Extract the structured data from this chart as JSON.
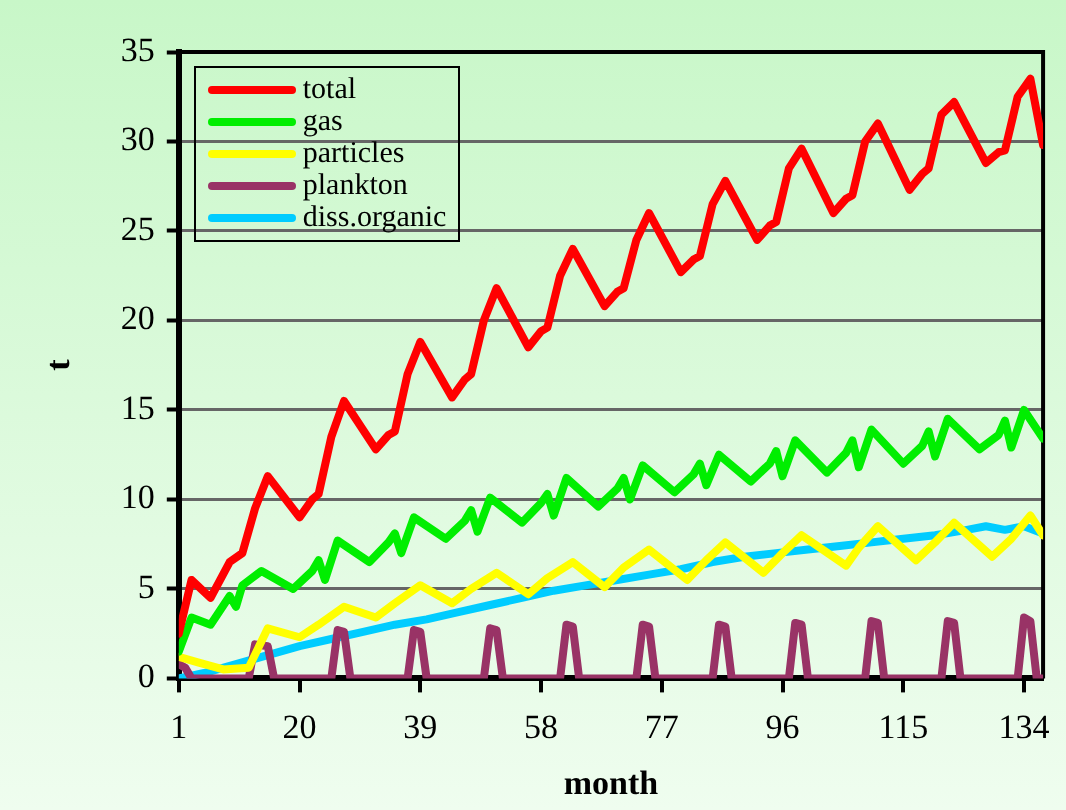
{
  "chart_data": {
    "type": "line",
    "xlabel": "month",
    "ylabel": "t",
    "xlim": [
      1,
      137
    ],
    "xticks": [
      1,
      20,
      39,
      58,
      77,
      96,
      115,
      134
    ],
    "ylim": [
      0,
      35
    ],
    "yticks": [
      0,
      5,
      10,
      15,
      20,
      25,
      30,
      35
    ],
    "grid": "y",
    "legend": "top left",
    "marker": "none",
    "line_style": "solid",
    "series": [
      {
        "name": "total",
        "color": "#ff0000",
        "x": [
          1,
          3,
          6,
          9,
          11,
          13,
          15,
          20,
          22,
          23,
          25,
          27,
          32,
          34,
          35,
          37,
          39,
          44,
          46,
          47,
          49,
          51,
          56,
          58,
          59,
          61,
          63,
          68,
          70,
          71,
          73,
          75,
          80,
          82,
          83,
          85,
          87,
          92,
          94,
          95,
          97,
          99,
          104,
          106,
          107,
          109,
          111,
          116,
          118,
          119,
          121,
          123,
          128,
          130,
          131,
          133,
          135,
          137
        ],
        "values": [
          2.5,
          5.5,
          4.5,
          6.5,
          7.0,
          9.5,
          11.3,
          9.0,
          10.0,
          10.3,
          13.5,
          15.5,
          12.8,
          13.6,
          13.8,
          17.0,
          18.8,
          15.7,
          16.7,
          17.0,
          20.0,
          21.8,
          18.5,
          19.4,
          19.6,
          22.5,
          24.0,
          20.8,
          21.6,
          21.8,
          24.5,
          26.0,
          22.7,
          23.4,
          23.6,
          26.5,
          27.8,
          24.5,
          25.3,
          25.5,
          28.5,
          29.6,
          26.0,
          26.8,
          27.0,
          30.0,
          31.0,
          27.3,
          28.2,
          28.5,
          31.5,
          32.2,
          28.8,
          29.4,
          29.5,
          32.5,
          33.5,
          29.8
        ]
      },
      {
        "name": "gas",
        "color": "#00ee00",
        "x": [
          1,
          3,
          6,
          9,
          10,
          11,
          14,
          19,
          22,
          23,
          24,
          26,
          31,
          34,
          35,
          36,
          38,
          43,
          46,
          47,
          48,
          50,
          55,
          58,
          59,
          60,
          62,
          67,
          70,
          71,
          72,
          74,
          79,
          82,
          83,
          84,
          86,
          91,
          94,
          95,
          96,
          98,
          103,
          106,
          107,
          108,
          110,
          115,
          118,
          119,
          120,
          122,
          127,
          130,
          131,
          132,
          134,
          137
        ],
        "values": [
          1.5,
          3.4,
          3.0,
          4.6,
          4.0,
          5.2,
          6.0,
          5.0,
          6.0,
          6.6,
          5.5,
          7.7,
          6.5,
          7.6,
          8.1,
          7.0,
          9.0,
          7.8,
          8.8,
          9.4,
          8.2,
          10.1,
          8.7,
          9.8,
          10.3,
          9.1,
          11.2,
          9.6,
          10.6,
          11.2,
          10.0,
          11.9,
          10.4,
          11.4,
          12.0,
          10.8,
          12.5,
          11.0,
          12.0,
          12.7,
          11.3,
          13.3,
          11.5,
          12.6,
          13.3,
          11.8,
          13.9,
          12.0,
          13.0,
          13.8,
          12.4,
          14.5,
          12.8,
          13.6,
          14.4,
          12.9,
          15.0,
          13.4
        ]
      },
      {
        "name": "particles",
        "color": "#ffff00",
        "x": [
          1,
          4,
          8,
          12,
          15,
          20,
          23,
          27,
          32,
          35,
          39,
          44,
          47,
          51,
          56,
          59,
          63,
          68,
          71,
          75,
          81,
          84,
          87,
          93,
          96,
          99,
          106,
          108,
          111,
          117,
          120,
          123,
          129,
          132,
          135,
          137
        ],
        "values": [
          1.2,
          0.9,
          0.5,
          0.6,
          2.8,
          2.3,
          3.0,
          4.0,
          3.4,
          4.2,
          5.2,
          4.2,
          5.0,
          5.9,
          4.7,
          5.6,
          6.5,
          5.1,
          6.2,
          7.2,
          5.5,
          6.6,
          7.6,
          5.9,
          7.0,
          8.0,
          6.3,
          7.3,
          8.5,
          6.6,
          7.6,
          8.7,
          6.8,
          7.8,
          9.1,
          8.0
        ]
      },
      {
        "name": "plankton",
        "color": "#993366",
        "x": [
          1,
          2,
          3,
          12,
          13,
          15,
          16,
          25,
          26,
          27,
          28,
          37,
          38,
          39,
          40,
          49,
          50,
          51,
          52,
          61,
          62,
          63,
          64,
          73,
          74,
          75,
          76,
          85,
          86,
          87,
          88,
          97,
          98,
          99,
          100,
          109,
          110,
          111,
          112,
          121,
          122,
          123,
          124,
          133,
          134,
          135,
          136,
          137
        ],
        "values": [
          0.8,
          0.6,
          0,
          0,
          1.9,
          1.8,
          0,
          0,
          2.7,
          2.6,
          0,
          0,
          2.7,
          2.6,
          0,
          0,
          2.8,
          2.7,
          0,
          0,
          3.0,
          2.9,
          0,
          0,
          3.0,
          2.9,
          0,
          0,
          3.0,
          2.9,
          0,
          0,
          3.1,
          3.0,
          0,
          0,
          3.2,
          3.1,
          0,
          0,
          3.2,
          3.1,
          0,
          0,
          3.4,
          3.2,
          0,
          0
        ]
      },
      {
        "name": "diss.organic",
        "color": "#00ccff",
        "x": [
          1,
          5,
          10,
          15,
          20,
          25,
          30,
          35,
          40,
          45,
          50,
          55,
          60,
          65,
          70,
          75,
          80,
          85,
          90,
          95,
          100,
          105,
          110,
          115,
          120,
          125,
          128,
          131,
          134,
          137
        ],
        "values": [
          0,
          0.3,
          0.8,
          1.3,
          1.8,
          2.2,
          2.6,
          3.0,
          3.3,
          3.7,
          4.1,
          4.5,
          4.9,
          5.2,
          5.5,
          5.8,
          6.1,
          6.5,
          6.8,
          7.0,
          7.2,
          7.4,
          7.6,
          7.8,
          8.0,
          8.3,
          8.5,
          8.3,
          8.5,
          8.1
        ]
      }
    ]
  }
}
